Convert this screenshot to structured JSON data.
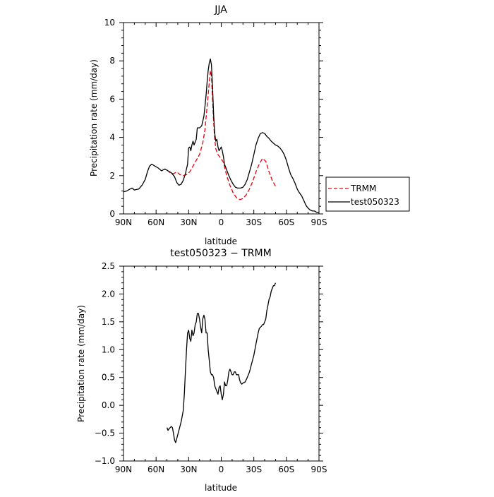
{
  "chart_data": [
    {
      "type": "line",
      "title": "JJA",
      "xlabel": "latitude",
      "ylabel": "Precipitation rate (mm/day)",
      "xlim": [
        90,
        -90
      ],
      "ylim": [
        0,
        10
      ],
      "x_ticks": [
        90,
        60,
        30,
        0,
        -30,
        -60,
        -90
      ],
      "x_tick_labels": [
        "90N",
        "60N",
        "30N",
        "0",
        "30S",
        "60S",
        "90S"
      ],
      "y_ticks": [
        0,
        2,
        4,
        6,
        8,
        10
      ],
      "y_tick_labels": [
        "0",
        "2",
        "4",
        "6",
        "8",
        "10"
      ],
      "legend_position": "right",
      "series": [
        {
          "name": "TRMM",
          "color": "#e8000b",
          "dash": "dashed",
          "points": [
            [
              50,
              2.3
            ],
            [
              47,
              2.15
            ],
            [
              44,
              2.1
            ],
            [
              41,
              2.2
            ],
            [
              38,
              2.05
            ],
            [
              35,
              2.0
            ],
            [
              32,
              2.05
            ],
            [
              29,
              2.2
            ],
            [
              26,
              2.5
            ],
            [
              23,
              2.8
            ],
            [
              20,
              3.1
            ],
            [
              17,
              3.7
            ],
            [
              15,
              4.4
            ],
            [
              13,
              5.6
            ],
            [
              11,
              6.9
            ],
            [
              10,
              7.5
            ],
            [
              9,
              7.2
            ],
            [
              8,
              6.0
            ],
            [
              7,
              4.8
            ],
            [
              6,
              3.9
            ],
            [
              5,
              3.4
            ],
            [
              3,
              3.1
            ],
            [
              1,
              2.95
            ],
            [
              -2,
              2.7
            ],
            [
              -5,
              2.0
            ],
            [
              -8,
              1.5
            ],
            [
              -11,
              1.1
            ],
            [
              -14,
              0.85
            ],
            [
              -17,
              0.75
            ],
            [
              -20,
              0.8
            ],
            [
              -23,
              1.0
            ],
            [
              -26,
              1.3
            ],
            [
              -29,
              1.7
            ],
            [
              -32,
              2.2
            ],
            [
              -35,
              2.6
            ],
            [
              -38,
              2.9
            ],
            [
              -41,
              2.75
            ],
            [
              -44,
              2.2
            ],
            [
              -47,
              1.75
            ],
            [
              -50,
              1.45
            ]
          ]
        },
        {
          "name": "test050323",
          "color": "#000000",
          "dash": "solid",
          "points": [
            [
              90,
              1.15
            ],
            [
              87,
              1.2
            ],
            [
              84,
              1.3
            ],
            [
              82,
              1.35
            ],
            [
              80,
              1.25
            ],
            [
              76,
              1.3
            ],
            [
              73,
              1.5
            ],
            [
              70,
              1.8
            ],
            [
              68,
              2.2
            ],
            [
              66,
              2.5
            ],
            [
              64,
              2.6
            ],
            [
              61,
              2.5
            ],
            [
              58,
              2.4
            ],
            [
              55,
              2.25
            ],
            [
              52,
              2.35
            ],
            [
              49,
              2.25
            ],
            [
              46,
              2.15
            ],
            [
              43,
              1.95
            ],
            [
              41,
              1.65
            ],
            [
              39,
              1.5
            ],
            [
              37,
              1.55
            ],
            [
              35,
              1.75
            ],
            [
              33,
              2.1
            ],
            [
              31,
              2.6
            ],
            [
              30,
              3.45
            ],
            [
              29,
              3.5
            ],
            [
              28,
              3.3
            ],
            [
              27,
              3.6
            ],
            [
              26,
              3.8
            ],
            [
              25,
              3.6
            ],
            [
              23,
              3.9
            ],
            [
              22,
              4.5
            ],
            [
              20,
              4.5
            ],
            [
              18,
              4.6
            ],
            [
              16,
              5.1
            ],
            [
              15,
              5.6
            ],
            [
              14,
              6.2
            ],
            [
              13,
              6.9
            ],
            [
              12,
              7.5
            ],
            [
              11,
              7.9
            ],
            [
              10,
              8.1
            ],
            [
              9,
              7.8
            ],
            [
              8,
              6.6
            ],
            [
              7,
              5.2
            ],
            [
              6,
              4.2
            ],
            [
              5,
              3.8
            ],
            [
              4,
              3.9
            ],
            [
              3,
              3.5
            ],
            [
              2,
              3.3
            ],
            [
              1,
              3.4
            ],
            [
              0,
              3.5
            ],
            [
              -1,
              3.3
            ],
            [
              -2,
              3.0
            ],
            [
              -3,
              2.6
            ],
            [
              -5,
              2.3
            ],
            [
              -7,
              2.0
            ],
            [
              -9,
              1.75
            ],
            [
              -11,
              1.55
            ],
            [
              -13,
              1.4
            ],
            [
              -15,
              1.35
            ],
            [
              -18,
              1.35
            ],
            [
              -20,
              1.4
            ],
            [
              -22,
              1.55
            ],
            [
              -24,
              1.8
            ],
            [
              -26,
              2.2
            ],
            [
              -28,
              2.6
            ],
            [
              -30,
              3.1
            ],
            [
              -32,
              3.6
            ],
            [
              -34,
              3.95
            ],
            [
              -36,
              4.2
            ],
            [
              -38,
              4.25
            ],
            [
              -40,
              4.2
            ],
            [
              -42,
              4.05
            ],
            [
              -44,
              3.95
            ],
            [
              -46,
              3.8
            ],
            [
              -48,
              3.7
            ],
            [
              -50,
              3.6
            ],
            [
              -52,
              3.55
            ],
            [
              -54,
              3.45
            ],
            [
              -56,
              3.3
            ],
            [
              -58,
              3.1
            ],
            [
              -60,
              2.8
            ],
            [
              -62,
              2.4
            ],
            [
              -64,
              2.05
            ],
            [
              -66,
              1.85
            ],
            [
              -68,
              1.6
            ],
            [
              -70,
              1.3
            ],
            [
              -72,
              1.1
            ],
            [
              -74,
              0.95
            ],
            [
              -76,
              0.7
            ],
            [
              -78,
              0.45
            ],
            [
              -80,
              0.3
            ],
            [
              -82,
              0.2
            ],
            [
              -84,
              0.15
            ],
            [
              -86,
              0.15
            ],
            [
              -88,
              0.08
            ],
            [
              -90,
              0.05
            ]
          ]
        }
      ]
    },
    {
      "type": "line",
      "title": "test050323 − TRMM",
      "xlabel": "latitude",
      "ylabel": "Precipitation rate (mm/day)",
      "xlim": [
        90,
        -90
      ],
      "ylim": [
        -1.0,
        2.5
      ],
      "x_ticks": [
        90,
        60,
        30,
        0,
        -30,
        -60,
        -90
      ],
      "x_tick_labels": [
        "90N",
        "60N",
        "30N",
        "0",
        "30S",
        "60S",
        "90S"
      ],
      "y_ticks": [
        -1.0,
        -0.5,
        0.0,
        0.5,
        1.0,
        1.5,
        2.0,
        2.5
      ],
      "y_tick_labels": [
        "−1.0",
        "−0.5",
        "0.0",
        "0.5",
        "1.0",
        "1.5",
        "2.0",
        "2.5"
      ],
      "series": [
        {
          "color": "#000000",
          "dash": "solid",
          "points": [
            [
              50,
              -0.4
            ],
            [
              49,
              -0.45
            ],
            [
              48,
              -0.42
            ],
            [
              46,
              -0.38
            ],
            [
              45,
              -0.4
            ],
            [
              44,
              -0.5
            ],
            [
              43,
              -0.62
            ],
            [
              42,
              -0.67
            ],
            [
              41,
              -0.6
            ],
            [
              39,
              -0.45
            ],
            [
              37,
              -0.3
            ],
            [
              35,
              -0.1
            ],
            [
              34,
              0.2
            ],
            [
              33,
              0.6
            ],
            [
              32,
              1.0
            ],
            [
              31,
              1.3
            ],
            [
              30,
              1.35
            ],
            [
              29,
              1.2
            ],
            [
              28,
              1.15
            ],
            [
              27,
              1.35
            ],
            [
              26,
              1.25
            ],
            [
              25,
              1.3
            ],
            [
              24,
              1.45
            ],
            [
              23,
              1.5
            ],
            [
              22,
              1.65
            ],
            [
              21,
              1.65
            ],
            [
              20,
              1.55
            ],
            [
              19,
              1.4
            ],
            [
              18,
              1.3
            ],
            [
              17,
              1.55
            ],
            [
              16,
              1.62
            ],
            [
              15,
              1.55
            ],
            [
              14,
              1.3
            ],
            [
              13,
              1.3
            ],
            [
              12,
              1.0
            ],
            [
              11,
              0.8
            ],
            [
              10,
              0.6
            ],
            [
              9,
              0.55
            ],
            [
              8,
              0.55
            ],
            [
              7,
              0.5
            ],
            [
              6,
              0.35
            ],
            [
              5,
              0.3
            ],
            [
              4,
              0.25
            ],
            [
              3,
              0.2
            ],
            [
              2,
              0.32
            ],
            [
              1,
              0.35
            ],
            [
              0,
              0.2
            ],
            [
              -1,
              0.1
            ],
            [
              -2,
              0.2
            ],
            [
              -3,
              0.42
            ],
            [
              -4,
              0.35
            ],
            [
              -5,
              0.35
            ],
            [
              -6,
              0.45
            ],
            [
              -7,
              0.6
            ],
            [
              -8,
              0.65
            ],
            [
              -9,
              0.6
            ],
            [
              -10,
              0.55
            ],
            [
              -11,
              0.55
            ],
            [
              -12,
              0.6
            ],
            [
              -13,
              0.6
            ],
            [
              -14,
              0.55
            ],
            [
              -15,
              0.55
            ],
            [
              -16,
              0.55
            ],
            [
              -17,
              0.45
            ],
            [
              -18,
              0.4
            ],
            [
              -19,
              0.38
            ],
            [
              -20,
              0.4
            ],
            [
              -22,
              0.42
            ],
            [
              -24,
              0.5
            ],
            [
              -26,
              0.6
            ],
            [
              -28,
              0.75
            ],
            [
              -30,
              0.9
            ],
            [
              -32,
              1.1
            ],
            [
              -34,
              1.3
            ],
            [
              -35,
              1.38
            ],
            [
              -36,
              1.4
            ],
            [
              -37,
              1.42
            ],
            [
              -38,
              1.45
            ],
            [
              -39,
              1.45
            ],
            [
              -40,
              1.5
            ],
            [
              -41,
              1.55
            ],
            [
              -42,
              1.7
            ],
            [
              -43,
              1.8
            ],
            [
              -44,
              1.9
            ],
            [
              -45,
              1.95
            ],
            [
              -46,
              2.05
            ],
            [
              -47,
              2.1
            ],
            [
              -48,
              2.15
            ],
            [
              -49,
              2.15
            ],
            [
              -50,
              2.2
            ]
          ]
        }
      ]
    }
  ]
}
